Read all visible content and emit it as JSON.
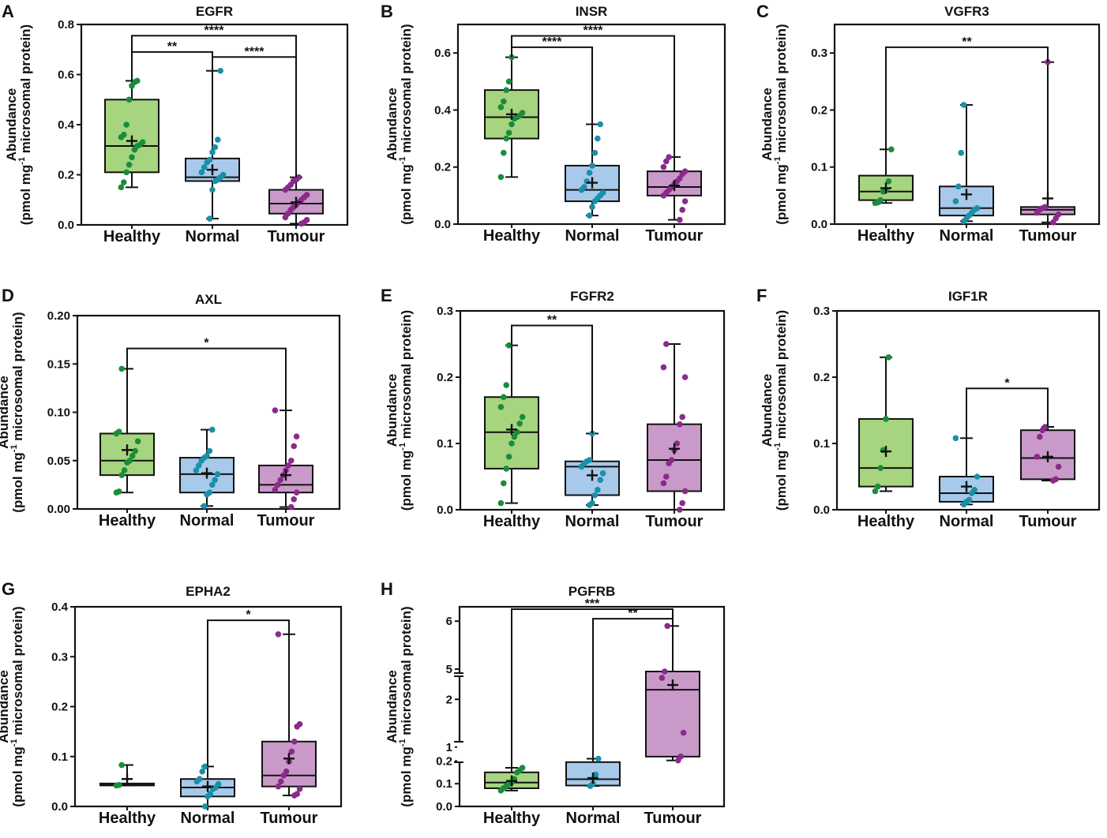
{
  "figure": {
    "colors": {
      "Healthy": {
        "fill": "#a6d47f",
        "dot": "#1a8c3b"
      },
      "Normal": {
        "fill": "#a7c9ea",
        "dot": "#1a8fa8"
      },
      "Tumour": {
        "fill": "#c99ac9",
        "dot": "#8b2a8b"
      }
    },
    "y_axis_title": {
      "line1": "Abundance",
      "line2_pre": "(pmol mg",
      "line2_sup": "-1",
      "line2_post": " microsomal protein)"
    }
  },
  "chart_data": [
    {
      "panel": "A",
      "title": "EGFR",
      "type": "box",
      "categories": [
        "Healthy",
        "Normal",
        "Tumour"
      ],
      "ylim": [
        0,
        0.8
      ],
      "yticks": [
        "0.0",
        "0.2",
        "0.4",
        "0.6",
        "0.8"
      ],
      "boxes": [
        {
          "group": "Healthy",
          "min": 0.15,
          "q1": 0.21,
          "median": 0.315,
          "q3": 0.5,
          "max": 0.575,
          "mean": 0.335,
          "points": [
            0.15,
            0.17,
            0.21,
            0.24,
            0.27,
            0.3,
            0.315,
            0.32,
            0.33,
            0.35,
            0.36,
            0.4,
            0.5,
            0.555,
            0.57,
            0.575
          ]
        },
        {
          "group": "Normal",
          "min": 0.025,
          "q1": 0.175,
          "median": 0.19,
          "q3": 0.265,
          "max": 0.615,
          "mean": 0.22,
          "points": [
            0.025,
            0.14,
            0.175,
            0.18,
            0.19,
            0.2,
            0.21,
            0.23,
            0.25,
            0.26,
            0.29,
            0.31,
            0.34,
            0.615
          ]
        },
        {
          "group": "Tumour",
          "min": 0.005,
          "q1": 0.045,
          "median": 0.085,
          "q3": 0.14,
          "max": 0.19,
          "mean": 0.09,
          "points": [
            0.005,
            0.01,
            0.02,
            0.03,
            0.045,
            0.06,
            0.07,
            0.08,
            0.09,
            0.1,
            0.11,
            0.12,
            0.14,
            0.15,
            0.16,
            0.175,
            0.18,
            0.19
          ]
        }
      ],
      "significance": [
        {
          "from": "Healthy",
          "to": "Tumour",
          "y": 0.755,
          "label": "****"
        },
        {
          "from": "Healthy",
          "to": "Normal",
          "y": 0.69,
          "label": "**"
        },
        {
          "from": "Normal",
          "to": "Tumour",
          "y": 0.67,
          "label": "****"
        }
      ]
    },
    {
      "panel": "B",
      "title": "INSR",
      "type": "box",
      "categories": [
        "Healthy",
        "Normal",
        "Tumour"
      ],
      "ylim": [
        0,
        0.7
      ],
      "yticks": [
        "0.0",
        "0.2",
        "0.4",
        "0.6"
      ],
      "boxes": [
        {
          "group": "Healthy",
          "min": 0.165,
          "q1": 0.3,
          "median": 0.375,
          "q3": 0.47,
          "max": 0.585,
          "mean": 0.385,
          "points": [
            0.165,
            0.25,
            0.3,
            0.32,
            0.35,
            0.37,
            0.375,
            0.38,
            0.39,
            0.41,
            0.43,
            0.47,
            0.5,
            0.585
          ]
        },
        {
          "group": "Normal",
          "min": 0.03,
          "q1": 0.08,
          "median": 0.12,
          "q3": 0.205,
          "max": 0.35,
          "mean": 0.145,
          "points": [
            0.03,
            0.06,
            0.08,
            0.09,
            0.1,
            0.11,
            0.12,
            0.13,
            0.15,
            0.18,
            0.205,
            0.25,
            0.3,
            0.35
          ]
        },
        {
          "group": "Tumour",
          "min": 0.015,
          "q1": 0.1,
          "median": 0.13,
          "q3": 0.185,
          "max": 0.235,
          "mean": 0.135,
          "points": [
            0.015,
            0.05,
            0.08,
            0.1,
            0.11,
            0.12,
            0.13,
            0.14,
            0.15,
            0.16,
            0.175,
            0.185,
            0.2,
            0.22,
            0.235
          ]
        }
      ],
      "significance": [
        {
          "from": "Healthy",
          "to": "Tumour",
          "y": 0.66,
          "label": "****"
        },
        {
          "from": "Healthy",
          "to": "Normal",
          "y": 0.62,
          "label": "****"
        }
      ]
    },
    {
      "panel": "C",
      "title": "VGFR3",
      "type": "box",
      "categories": [
        "Healthy",
        "Normal",
        "Tumour"
      ],
      "ylim": [
        0,
        0.35
      ],
      "yticks": [
        "0.0",
        "0.1",
        "0.2",
        "0.3"
      ],
      "boxes": [
        {
          "group": "Healthy",
          "min": 0.037,
          "q1": 0.042,
          "median": 0.057,
          "q3": 0.085,
          "max": 0.131,
          "mean": 0.063,
          "points": [
            0.037,
            0.038,
            0.042,
            0.057,
            0.06,
            0.075,
            0.131
          ]
        },
        {
          "group": "Normal",
          "min": 0.005,
          "q1": 0.015,
          "median": 0.028,
          "q3": 0.066,
          "max": 0.209,
          "mean": 0.052,
          "points": [
            0.005,
            0.01,
            0.015,
            0.02,
            0.025,
            0.028,
            0.04,
            0.066,
            0.125,
            0.209
          ]
        },
        {
          "group": "Tumour",
          "min": 0.003,
          "q1": 0.017,
          "median": 0.025,
          "q3": 0.03,
          "max": 0.284,
          "mean": 0.045,
          "points": [
            0.003,
            0.01,
            0.017,
            0.02,
            0.025,
            0.028,
            0.03,
            0.284
          ]
        }
      ],
      "significance": [
        {
          "from": "Healthy",
          "to": "Tumour",
          "y": 0.31,
          "label": "**"
        }
      ]
    },
    {
      "panel": "D",
      "title": "AXL",
      "type": "box",
      "categories": [
        "Healthy",
        "Normal",
        "Tumour"
      ],
      "ylim": [
        0,
        0.2
      ],
      "yticks": [
        "0.00",
        "0.05",
        "0.10",
        "0.15",
        "0.20"
      ],
      "boxes": [
        {
          "group": "Healthy",
          "min": 0.017,
          "q1": 0.035,
          "median": 0.05,
          "q3": 0.078,
          "max": 0.145,
          "mean": 0.061,
          "points": [
            0.017,
            0.018,
            0.035,
            0.04,
            0.048,
            0.05,
            0.055,
            0.06,
            0.07,
            0.078,
            0.08,
            0.145
          ]
        },
        {
          "group": "Normal",
          "min": 0.003,
          "q1": 0.017,
          "median": 0.036,
          "q3": 0.053,
          "max": 0.082,
          "mean": 0.037,
          "points": [
            0.003,
            0.015,
            0.017,
            0.025,
            0.03,
            0.036,
            0.04,
            0.045,
            0.05,
            0.053,
            0.055,
            0.06,
            0.082
          ]
        },
        {
          "group": "Tumour",
          "min": 0.002,
          "q1": 0.017,
          "median": 0.025,
          "q3": 0.045,
          "max": 0.102,
          "mean": 0.035,
          "points": [
            0.002,
            0.01,
            0.017,
            0.02,
            0.025,
            0.03,
            0.035,
            0.04,
            0.045,
            0.05,
            0.065,
            0.075,
            0.102
          ]
        }
      ],
      "significance": [
        {
          "from": "Healthy",
          "to": "Tumour",
          "y": 0.166,
          "label": "*"
        }
      ]
    },
    {
      "panel": "E",
      "title": "FGFR2",
      "type": "box",
      "categories": [
        "Healthy",
        "Normal",
        "Tumour"
      ],
      "ylim": [
        0,
        0.3
      ],
      "yticks": [
        "0.0",
        "0.1",
        "0.2",
        "0.3"
      ],
      "boxes": [
        {
          "group": "Healthy",
          "min": 0.01,
          "q1": 0.062,
          "median": 0.117,
          "q3": 0.17,
          "max": 0.248,
          "mean": 0.121,
          "points": [
            0.01,
            0.04,
            0.062,
            0.08,
            0.1,
            0.11,
            0.117,
            0.13,
            0.14,
            0.155,
            0.17,
            0.188,
            0.248
          ]
        },
        {
          "group": "Normal",
          "min": 0.007,
          "q1": 0.022,
          "median": 0.065,
          "q3": 0.073,
          "max": 0.115,
          "mean": 0.052,
          "points": [
            0.007,
            0.01,
            0.022,
            0.03,
            0.045,
            0.055,
            0.065,
            0.07,
            0.073,
            0.075,
            0.115
          ]
        },
        {
          "group": "Tumour",
          "min": 0.0,
          "q1": 0.028,
          "median": 0.075,
          "q3": 0.129,
          "max": 0.25,
          "mean": 0.092,
          "points": [
            0.0,
            0.01,
            0.028,
            0.04,
            0.05,
            0.07,
            0.075,
            0.09,
            0.1,
            0.129,
            0.14,
            0.2,
            0.215,
            0.25
          ]
        }
      ],
      "significance": [
        {
          "from": "Healthy",
          "to": "Normal",
          "y": 0.278,
          "label": "**"
        }
      ]
    },
    {
      "panel": "F",
      "title": "IGF1R",
      "type": "box",
      "categories": [
        "Healthy",
        "Normal",
        "Tumour"
      ],
      "ylim": [
        0,
        0.3
      ],
      "yticks": [
        "0.0",
        "0.1",
        "0.2",
        "0.3"
      ],
      "boxes": [
        {
          "group": "Healthy",
          "min": 0.028,
          "q1": 0.035,
          "median": 0.063,
          "q3": 0.137,
          "max": 0.23,
          "mean": 0.088,
          "points": [
            0.028,
            0.035,
            0.063,
            0.09,
            0.137,
            0.23
          ]
        },
        {
          "group": "Normal",
          "min": 0.008,
          "q1": 0.012,
          "median": 0.025,
          "q3": 0.05,
          "max": 0.108,
          "mean": 0.035,
          "points": [
            0.008,
            0.012,
            0.015,
            0.025,
            0.03,
            0.05,
            0.108
          ]
        },
        {
          "group": "Tumour",
          "min": 0.044,
          "q1": 0.046,
          "median": 0.078,
          "q3": 0.12,
          "max": 0.125,
          "mean": 0.08,
          "points": [
            0.044,
            0.046,
            0.065,
            0.08,
            0.11,
            0.12,
            0.125
          ]
        }
      ],
      "significance": [
        {
          "from": "Normal",
          "to": "Tumour",
          "y": 0.183,
          "label": "*"
        }
      ]
    },
    {
      "panel": "G",
      "title": "EPHA2",
      "type": "box",
      "categories": [
        "Healthy",
        "Normal",
        "Tumour"
      ],
      "ylim": [
        0,
        0.4
      ],
      "yticks": [
        "0.0",
        "0.1",
        "0.2",
        "0.3",
        "0.4"
      ],
      "boxes": [
        {
          "group": "Healthy",
          "min": 0.042,
          "q1": 0.042,
          "median": 0.043,
          "q3": 0.046,
          "max": 0.083,
          "mean": 0.055,
          "points": [
            0.042,
            0.043,
            0.083
          ]
        },
        {
          "group": "Normal",
          "min": 0.0,
          "q1": 0.02,
          "median": 0.038,
          "q3": 0.055,
          "max": 0.08,
          "mean": 0.04,
          "points": [
            0.0,
            0.02,
            0.025,
            0.035,
            0.038,
            0.045,
            0.05,
            0.055,
            0.07,
            0.08
          ]
        },
        {
          "group": "Tumour",
          "min": 0.022,
          "q1": 0.04,
          "median": 0.062,
          "q3": 0.13,
          "max": 0.345,
          "mean": 0.096,
          "points": [
            0.022,
            0.025,
            0.035,
            0.04,
            0.05,
            0.062,
            0.07,
            0.09,
            0.11,
            0.13,
            0.16,
            0.165,
            0.345
          ]
        }
      ],
      "significance": [
        {
          "from": "Normal",
          "to": "Tumour",
          "y": 0.373,
          "label": "*"
        }
      ]
    },
    {
      "panel": "H",
      "title": "PGFRB",
      "type": "box",
      "broken_axis": true,
      "categories": [
        "Healthy",
        "Normal",
        "Tumour"
      ],
      "axis_segments": [
        {
          "range": [
            0,
            0.25
          ],
          "ticks": [
            0.0,
            0.1,
            0.2
          ],
          "labels": [
            "0.0",
            "0.1",
            "0.2"
          ]
        },
        {
          "range": [
            0.5,
            2.5
          ],
          "ticks": [
            1,
            2
          ],
          "labels": [
            "1",
            "2"
          ]
        },
        {
          "range": [
            4.95,
            6.3
          ],
          "ticks": [
            5,
            6
          ],
          "labels": [
            "5",
            "6"
          ]
        }
      ],
      "boxes": [
        {
          "group": "Healthy",
          "min": 0.07,
          "q1": 0.08,
          "median": 0.105,
          "q3": 0.15,
          "max": 0.17,
          "mean": 0.112,
          "points": [
            0.07,
            0.08,
            0.09,
            0.1,
            0.105,
            0.12,
            0.15,
            0.16,
            0.17
          ]
        },
        {
          "group": "Normal",
          "min": 0.09,
          "q1": 0.092,
          "median": 0.12,
          "q3": 0.195,
          "max": 0.21,
          "mean": 0.125,
          "points": [
            0.09,
            0.1,
            0.14,
            0.21
          ]
        },
        {
          "group": "Tumour",
          "min": 0.72,
          "q1": 0.8,
          "median": 2.2,
          "q3": 2.6,
          "max": 5.9,
          "mean": 2.3,
          "points": [
            0.72,
            0.8,
            1.3,
            2.45,
            2.6,
            5.9
          ]
        }
      ],
      "significance": [
        {
          "from": "Healthy",
          "to": "Tumour",
          "y": 6.25,
          "label": "***"
        },
        {
          "from": "Normal",
          "to": "Tumour",
          "y": 6.05,
          "label": "**"
        }
      ]
    }
  ]
}
